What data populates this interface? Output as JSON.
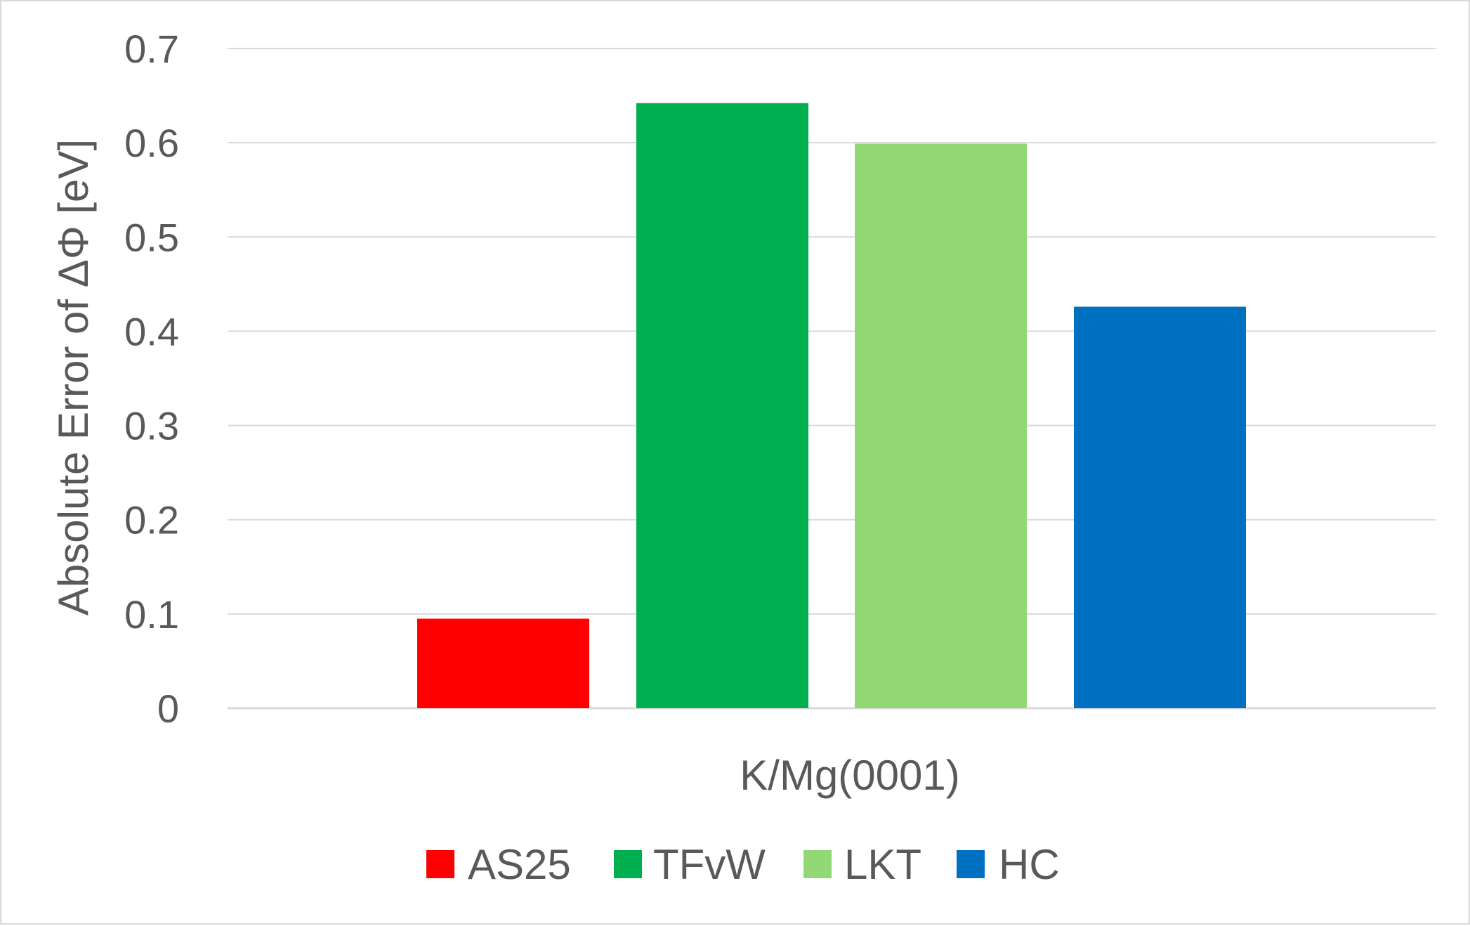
{
  "chart_data": {
    "type": "bar",
    "categories": [
      "K/Mg(0001)"
    ],
    "series": [
      {
        "name": "AS25",
        "values": [
          0.095
        ],
        "color": "#ff0000"
      },
      {
        "name": "TFvW",
        "values": [
          0.642
        ],
        "color": "#00b050"
      },
      {
        "name": "LKT",
        "values": [
          0.599
        ],
        "color": "#92d975"
      },
      {
        "name": "HC",
        "values": [
          0.426
        ],
        "color": "#0070c0"
      }
    ],
    "title": "",
    "xlabel": "",
    "ylabel": "Absolute Error of ΔΦ [eV]",
    "ylim": [
      0,
      0.7
    ],
    "yticks": [
      "0",
      "0.1",
      "0.2",
      "0.3",
      "0.4",
      "0.5",
      "0.6",
      "0.7"
    ],
    "grid": true,
    "legend_position": "bottom",
    "gridline_color": "#d9d9d9",
    "text_color": "#595959"
  }
}
